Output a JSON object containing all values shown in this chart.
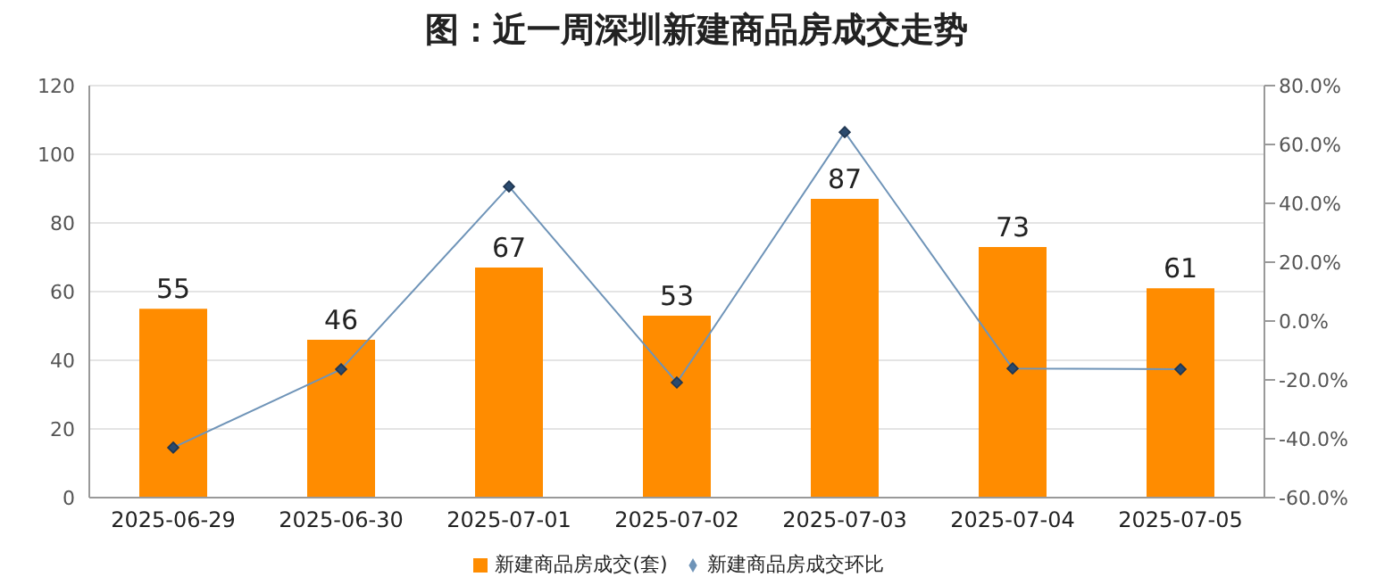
{
  "chart_data": {
    "type": "bar",
    "title": "图：近一周深圳新建商品房成交走势",
    "categories": [
      "2025-06-29",
      "2025-06-30",
      "2025-07-01",
      "2025-07-02",
      "2025-07-03",
      "2025-07-04",
      "2025-07-05"
    ],
    "series": [
      {
        "name": "新建商品房成交(套)",
        "color": "#ff8c00",
        "values": [
          55,
          46,
          67,
          53,
          87,
          73,
          61
        ],
        "value_labels": [
          "55",
          "46",
          "67",
          "53",
          "87",
          "73",
          "61"
        ]
      },
      {
        "name": "新建商品房成交环比",
        "type": "line",
        "axis": "y2",
        "color": "#6f94b8",
        "marker": "diamond",
        "values": [
          -43,
          -16.4,
          45.7,
          -20.9,
          64.2,
          -16.1,
          -16.4
        ]
      }
    ],
    "ylim": [
      0,
      120
    ],
    "yticks": [
      0,
      20,
      40,
      60,
      80,
      100,
      120
    ],
    "y2lim": [
      -60,
      80
    ],
    "y2ticks": [
      {
        "value": -60,
        "label": "-60.0%"
      },
      {
        "value": -40,
        "label": "-40.0%"
      },
      {
        "value": -20,
        "label": "-20.0%"
      },
      {
        "value": 0,
        "label": "0.0%"
      },
      {
        "value": 20,
        "label": "20.0%"
      },
      {
        "value": 40,
        "label": "40.0%"
      },
      {
        "value": 60,
        "label": "60.0%"
      },
      {
        "value": 80,
        "label": "80.0%"
      }
    ],
    "grid": "y",
    "legend": "bottom"
  }
}
